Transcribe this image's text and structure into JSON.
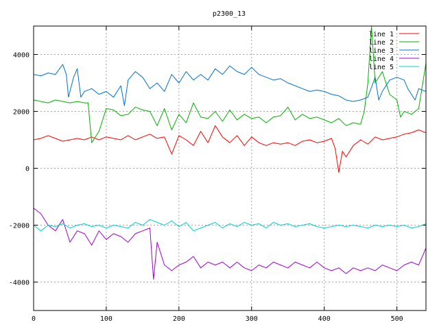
{
  "chart_data": {
    "type": "line",
    "title": "p2300_13",
    "xlabel": "",
    "ylabel": "",
    "xlim": [
      0,
      540
    ],
    "ylim": [
      -5000,
      5000
    ],
    "xticks": [
      0,
      100,
      200,
      300,
      400,
      500
    ],
    "yticks": [
      -4000,
      -2000,
      0,
      2000,
      4000
    ],
    "grid": true,
    "legend_position": "top-right",
    "series": [
      {
        "name": "line 1",
        "color": "#ff0000",
        "points": [
          [
            0,
            1000
          ],
          [
            10,
            1050
          ],
          [
            20,
            1150
          ],
          [
            30,
            1050
          ],
          [
            40,
            950
          ],
          [
            50,
            1000
          ],
          [
            60,
            1050
          ],
          [
            70,
            1000
          ],
          [
            80,
            1100
          ],
          [
            90,
            1000
          ],
          [
            100,
            1100
          ],
          [
            110,
            1050
          ],
          [
            120,
            1000
          ],
          [
            130,
            1150
          ],
          [
            140,
            1000
          ],
          [
            150,
            1100
          ],
          [
            160,
            1200
          ],
          [
            170,
            1050
          ],
          [
            180,
            1100
          ],
          [
            190,
            500
          ],
          [
            200,
            1150
          ],
          [
            210,
            1000
          ],
          [
            220,
            800
          ],
          [
            230,
            1300
          ],
          [
            240,
            900
          ],
          [
            250,
            1500
          ],
          [
            260,
            1100
          ],
          [
            270,
            900
          ],
          [
            280,
            1150
          ],
          [
            290,
            800
          ],
          [
            300,
            1100
          ],
          [
            310,
            900
          ],
          [
            320,
            800
          ],
          [
            330,
            900
          ],
          [
            340,
            850
          ],
          [
            350,
            900
          ],
          [
            360,
            800
          ],
          [
            370,
            950
          ],
          [
            380,
            1000
          ],
          [
            390,
            900
          ],
          [
            400,
            950
          ],
          [
            410,
            1050
          ],
          [
            415,
            700
          ],
          [
            420,
            -150
          ],
          [
            425,
            600
          ],
          [
            430,
            400
          ],
          [
            440,
            800
          ],
          [
            450,
            1000
          ],
          [
            460,
            850
          ],
          [
            470,
            1100
          ],
          [
            480,
            1000
          ],
          [
            490,
            1050
          ],
          [
            500,
            1100
          ],
          [
            510,
            1200
          ],
          [
            520,
            1250
          ],
          [
            530,
            1350
          ],
          [
            540,
            1250
          ]
        ]
      },
      {
        "name": "line 2",
        "color": "#00b000",
        "points": [
          [
            0,
            2400
          ],
          [
            10,
            2350
          ],
          [
            20,
            2300
          ],
          [
            30,
            2400
          ],
          [
            40,
            2350
          ],
          [
            50,
            2300
          ],
          [
            60,
            2350
          ],
          [
            70,
            2300
          ],
          [
            75,
            2300
          ],
          [
            80,
            900
          ],
          [
            90,
            1300
          ],
          [
            100,
            2100
          ],
          [
            110,
            2050
          ],
          [
            120,
            1850
          ],
          [
            130,
            1900
          ],
          [
            140,
            2150
          ],
          [
            150,
            2050
          ],
          [
            160,
            2000
          ],
          [
            170,
            1500
          ],
          [
            180,
            2100
          ],
          [
            190,
            1350
          ],
          [
            200,
            1900
          ],
          [
            210,
            1600
          ],
          [
            220,
            2300
          ],
          [
            230,
            1800
          ],
          [
            240,
            1750
          ],
          [
            250,
            2000
          ],
          [
            260,
            1650
          ],
          [
            270,
            2050
          ],
          [
            280,
            1700
          ],
          [
            290,
            1900
          ],
          [
            300,
            1750
          ],
          [
            310,
            1800
          ],
          [
            320,
            1600
          ],
          [
            330,
            1800
          ],
          [
            340,
            1850
          ],
          [
            350,
            2150
          ],
          [
            360,
            1700
          ],
          [
            370,
            1900
          ],
          [
            380,
            1750
          ],
          [
            390,
            1800
          ],
          [
            400,
            1700
          ],
          [
            410,
            1600
          ],
          [
            420,
            1750
          ],
          [
            430,
            1500
          ],
          [
            440,
            1600
          ],
          [
            450,
            1550
          ],
          [
            455,
            2000
          ],
          [
            460,
            3000
          ],
          [
            465,
            5000
          ],
          [
            470,
            3000
          ],
          [
            480,
            3400
          ],
          [
            490,
            2600
          ],
          [
            500,
            2400
          ],
          [
            505,
            1800
          ],
          [
            510,
            2000
          ],
          [
            520,
            1900
          ],
          [
            530,
            2100
          ],
          [
            540,
            3700
          ]
        ]
      },
      {
        "name": "line 3",
        "color": "#0070d0",
        "points": [
          [
            0,
            3300
          ],
          [
            10,
            3250
          ],
          [
            20,
            3350
          ],
          [
            30,
            3300
          ],
          [
            40,
            3650
          ],
          [
            45,
            3300
          ],
          [
            48,
            2500
          ],
          [
            55,
            3200
          ],
          [
            60,
            3500
          ],
          [
            65,
            2500
          ],
          [
            70,
            2700
          ],
          [
            80,
            2800
          ],
          [
            90,
            2600
          ],
          [
            100,
            2700
          ],
          [
            110,
            2500
          ],
          [
            120,
            2900
          ],
          [
            125,
            2200
          ],
          [
            130,
            3100
          ],
          [
            140,
            3400
          ],
          [
            150,
            3200
          ],
          [
            160,
            2800
          ],
          [
            170,
            3000
          ],
          [
            180,
            2700
          ],
          [
            190,
            3300
          ],
          [
            200,
            3000
          ],
          [
            210,
            3400
          ],
          [
            220,
            3100
          ],
          [
            230,
            3300
          ],
          [
            240,
            3100
          ],
          [
            250,
            3500
          ],
          [
            260,
            3300
          ],
          [
            270,
            3600
          ],
          [
            280,
            3400
          ],
          [
            290,
            3300
          ],
          [
            300,
            3550
          ],
          [
            310,
            3300
          ],
          [
            320,
            3200
          ],
          [
            330,
            3100
          ],
          [
            340,
            3150
          ],
          [
            350,
            3000
          ],
          [
            360,
            2900
          ],
          [
            370,
            2800
          ],
          [
            380,
            2700
          ],
          [
            390,
            2750
          ],
          [
            400,
            2700
          ],
          [
            410,
            2600
          ],
          [
            420,
            2550
          ],
          [
            430,
            2400
          ],
          [
            440,
            2350
          ],
          [
            450,
            2400
          ],
          [
            460,
            2500
          ],
          [
            470,
            3200
          ],
          [
            475,
            2400
          ],
          [
            480,
            2700
          ],
          [
            490,
            3100
          ],
          [
            500,
            3200
          ],
          [
            510,
            3100
          ],
          [
            515,
            2800
          ],
          [
            520,
            2600
          ],
          [
            525,
            2400
          ],
          [
            530,
            2800
          ],
          [
            540,
            2700
          ]
        ]
      },
      {
        "name": "line 4",
        "color": "#a000d0",
        "points": [
          [
            0,
            -1400
          ],
          [
            10,
            -1600
          ],
          [
            20,
            -2000
          ],
          [
            30,
            -2200
          ],
          [
            40,
            -1800
          ],
          [
            50,
            -2600
          ],
          [
            60,
            -2200
          ],
          [
            70,
            -2300
          ],
          [
            80,
            -2700
          ],
          [
            90,
            -2200
          ],
          [
            100,
            -2500
          ],
          [
            110,
            -2300
          ],
          [
            120,
            -2400
          ],
          [
            130,
            -2600
          ],
          [
            140,
            -2300
          ],
          [
            150,
            -2200
          ],
          [
            160,
            -2100
          ],
          [
            165,
            -3900
          ],
          [
            170,
            -2600
          ],
          [
            180,
            -3400
          ],
          [
            190,
            -3600
          ],
          [
            200,
            -3400
          ],
          [
            210,
            -3300
          ],
          [
            220,
            -3100
          ],
          [
            230,
            -3500
          ],
          [
            240,
            -3300
          ],
          [
            250,
            -3400
          ],
          [
            260,
            -3300
          ],
          [
            270,
            -3500
          ],
          [
            280,
            -3300
          ],
          [
            290,
            -3500
          ],
          [
            300,
            -3600
          ],
          [
            310,
            -3400
          ],
          [
            320,
            -3500
          ],
          [
            330,
            -3300
          ],
          [
            340,
            -3400
          ],
          [
            350,
            -3500
          ],
          [
            360,
            -3300
          ],
          [
            370,
            -3400
          ],
          [
            380,
            -3500
          ],
          [
            390,
            -3300
          ],
          [
            400,
            -3500
          ],
          [
            410,
            -3600
          ],
          [
            420,
            -3500
          ],
          [
            430,
            -3700
          ],
          [
            440,
            -3500
          ],
          [
            450,
            -3600
          ],
          [
            460,
            -3500
          ],
          [
            470,
            -3600
          ],
          [
            480,
            -3400
          ],
          [
            490,
            -3500
          ],
          [
            500,
            -3600
          ],
          [
            510,
            -3400
          ],
          [
            520,
            -3300
          ],
          [
            530,
            -3400
          ],
          [
            540,
            -2800
          ]
        ]
      },
      {
        "name": "line 5",
        "color": "#00d0d0",
        "points": [
          [
            0,
            -2000
          ],
          [
            10,
            -2200
          ],
          [
            20,
            -2000
          ],
          [
            30,
            -2050
          ],
          [
            40,
            -1950
          ],
          [
            50,
            -2100
          ],
          [
            60,
            -2000
          ],
          [
            70,
            -1950
          ],
          [
            80,
            -2050
          ],
          [
            90,
            -2000
          ],
          [
            100,
            -2100
          ],
          [
            110,
            -2000
          ],
          [
            120,
            -2050
          ],
          [
            130,
            -2100
          ],
          [
            140,
            -1900
          ],
          [
            150,
            -2000
          ],
          [
            160,
            -1800
          ],
          [
            170,
            -1900
          ],
          [
            180,
            -2000
          ],
          [
            190,
            -1850
          ],
          [
            200,
            -2050
          ],
          [
            210,
            -1900
          ],
          [
            220,
            -2200
          ],
          [
            230,
            -2100
          ],
          [
            240,
            -2000
          ],
          [
            250,
            -1900
          ],
          [
            260,
            -2100
          ],
          [
            270,
            -1950
          ],
          [
            280,
            -2050
          ],
          [
            290,
            -1900
          ],
          [
            300,
            -2000
          ],
          [
            310,
            -1950
          ],
          [
            320,
            -2100
          ],
          [
            330,
            -1900
          ],
          [
            340,
            -2000
          ],
          [
            350,
            -1950
          ],
          [
            360,
            -2050
          ],
          [
            370,
            -2000
          ],
          [
            380,
            -1950
          ],
          [
            390,
            -2050
          ],
          [
            400,
            -2100
          ],
          [
            410,
            -2050
          ],
          [
            420,
            -2000
          ],
          [
            430,
            -2050
          ],
          [
            440,
            -2000
          ],
          [
            450,
            -2050
          ],
          [
            460,
            -2100
          ],
          [
            470,
            -2000
          ],
          [
            480,
            -2050
          ],
          [
            490,
            -2000
          ],
          [
            500,
            -2050
          ],
          [
            510,
            -2000
          ],
          [
            520,
            -2100
          ],
          [
            530,
            -2050
          ],
          [
            540,
            -1950
          ]
        ]
      }
    ]
  }
}
